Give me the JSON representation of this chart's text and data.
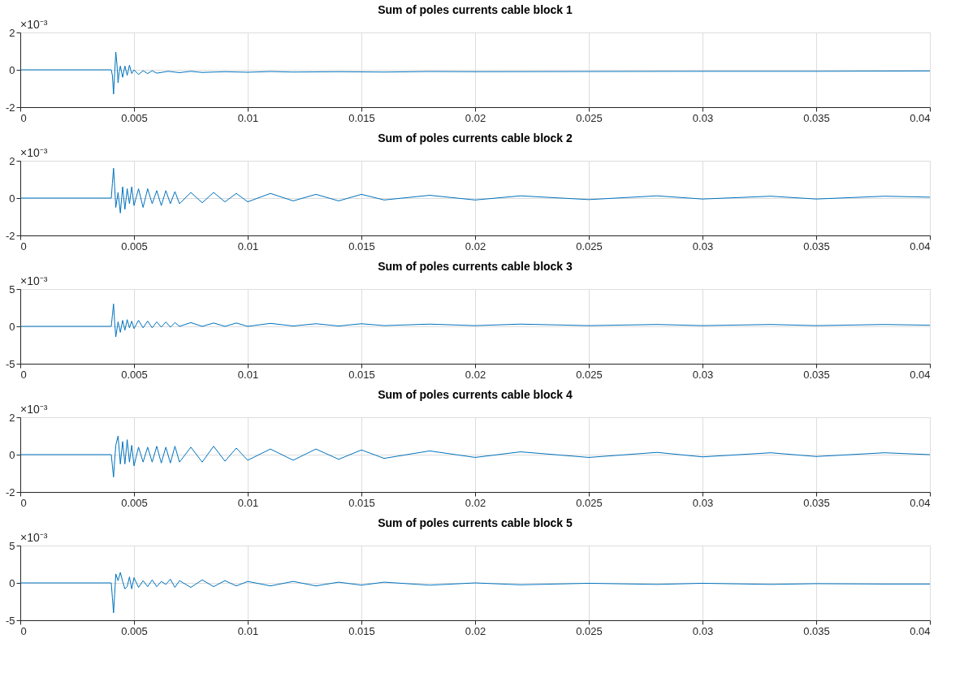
{
  "chart_data": [
    {
      "type": "line",
      "title": "Sum of poles currents  cable block 1",
      "annotations": [
        "×10⁻³"
      ],
      "grid": true,
      "xlim": [
        0,
        0.04
      ],
      "xticks": [
        0,
        0.005,
        0.01,
        0.015,
        0.02,
        0.025,
        0.03,
        0.035,
        0.04
      ],
      "ylim": [
        -2,
        2
      ],
      "yticks": [
        -2,
        0,
        2
      ],
      "x": [
        0,
        0.004,
        0.00405,
        0.0041,
        0.00415,
        0.0042,
        0.00425,
        0.0043,
        0.00435,
        0.0044,
        0.0045,
        0.0046,
        0.0047,
        0.0048,
        0.0049,
        0.005,
        0.0052,
        0.0054,
        0.0056,
        0.0058,
        0.006,
        0.0065,
        0.007,
        0.0075,
        0.008,
        0.009,
        0.01,
        0.011,
        0.012,
        0.014,
        0.016,
        0.018,
        0.02,
        0.025,
        0.03,
        0.035,
        0.04
      ],
      "series": [
        {
          "color": "#0072bd",
          "values": [
            0,
            0,
            -0.3,
            -1.3,
            -0.2,
            0.95,
            0.3,
            -0.7,
            -0.1,
            0.2,
            -0.4,
            0.2,
            -0.3,
            0.25,
            -0.2,
            0.0,
            -0.25,
            -0.05,
            -0.2,
            -0.05,
            -0.18,
            -0.08,
            -0.15,
            -0.08,
            -0.14,
            -0.1,
            -0.13,
            -0.09,
            -0.12,
            -0.1,
            -0.12,
            -0.09,
            -0.1,
            -0.09,
            -0.08,
            -0.08,
            -0.06
          ]
        }
      ]
    },
    {
      "type": "line",
      "title": "Sum of poles currents  cable block 2",
      "annotations": [
        "×10⁻³"
      ],
      "grid": true,
      "xlim": [
        0,
        0.04
      ],
      "xticks": [
        0,
        0.005,
        0.01,
        0.015,
        0.02,
        0.025,
        0.03,
        0.035,
        0.04
      ],
      "ylim": [
        -2,
        2
      ],
      "yticks": [
        -2,
        0,
        2
      ],
      "x": [
        0,
        0.004,
        0.00405,
        0.0041,
        0.00415,
        0.0042,
        0.0043,
        0.0044,
        0.0045,
        0.0046,
        0.0047,
        0.0048,
        0.0049,
        0.005,
        0.0052,
        0.0054,
        0.0056,
        0.0058,
        0.006,
        0.0062,
        0.0064,
        0.0066,
        0.0068,
        0.007,
        0.0075,
        0.008,
        0.0085,
        0.009,
        0.0095,
        0.01,
        0.011,
        0.012,
        0.013,
        0.014,
        0.015,
        0.016,
        0.018,
        0.02,
        0.022,
        0.025,
        0.028,
        0.03,
        0.033,
        0.035,
        0.038,
        0.04
      ],
      "series": [
        {
          "color": "#0072bd",
          "values": [
            0,
            0,
            0.8,
            1.6,
            0.6,
            -0.5,
            0.3,
            -0.8,
            0.6,
            -0.6,
            0.5,
            -0.3,
            0.6,
            -0.4,
            0.5,
            -0.5,
            0.5,
            -0.3,
            0.4,
            -0.4,
            0.4,
            -0.3,
            0.35,
            -0.3,
            0.3,
            -0.25,
            0.3,
            -0.2,
            0.25,
            -0.2,
            0.25,
            -0.15,
            0.2,
            -0.15,
            0.2,
            -0.1,
            0.15,
            -0.1,
            0.12,
            -0.08,
            0.12,
            -0.05,
            0.1,
            -0.05,
            0.1,
            0.05
          ]
        }
      ]
    },
    {
      "type": "line",
      "title": "Sum of poles currents  cable block 3",
      "annotations": [
        "×10⁻³"
      ],
      "grid": true,
      "xlim": [
        0,
        0.04
      ],
      "xticks": [
        0,
        0.005,
        0.01,
        0.015,
        0.02,
        0.025,
        0.03,
        0.035,
        0.04
      ],
      "ylim": [
        -5,
        5
      ],
      "yticks": [
        -5,
        0,
        5
      ],
      "x": [
        0,
        0.004,
        0.00405,
        0.0041,
        0.00415,
        0.0042,
        0.0043,
        0.0044,
        0.0045,
        0.0046,
        0.0047,
        0.0048,
        0.0049,
        0.005,
        0.0052,
        0.0054,
        0.0056,
        0.0058,
        0.006,
        0.0062,
        0.0064,
        0.0066,
        0.0068,
        0.007,
        0.0075,
        0.008,
        0.0085,
        0.009,
        0.0095,
        0.01,
        0.011,
        0.012,
        0.013,
        0.014,
        0.015,
        0.016,
        0.018,
        0.02,
        0.022,
        0.025,
        0.028,
        0.03,
        0.033,
        0.035,
        0.038,
        0.04
      ],
      "series": [
        {
          "color": "#0072bd",
          "values": [
            0,
            0,
            1.5,
            3.0,
            0.5,
            -1.4,
            0.6,
            -0.8,
            0.8,
            -0.5,
            0.9,
            -0.2,
            0.7,
            -0.3,
            0.8,
            -0.2,
            0.7,
            -0.2,
            0.6,
            -0.1,
            0.6,
            -0.1,
            0.5,
            0,
            0.5,
            0,
            0.45,
            0,
            0.45,
            0,
            0.4,
            0.05,
            0.35,
            0.05,
            0.35,
            0.1,
            0.3,
            0.1,
            0.3,
            0.1,
            0.25,
            0.1,
            0.25,
            0.1,
            0.25,
            0.15
          ]
        }
      ]
    },
    {
      "type": "line",
      "title": "Sum of poles currents  cable block 4",
      "annotations": [
        "×10⁻³"
      ],
      "grid": true,
      "xlim": [
        0,
        0.04
      ],
      "xticks": [
        0,
        0.005,
        0.01,
        0.015,
        0.02,
        0.025,
        0.03,
        0.035,
        0.04
      ],
      "ylim": [
        -2,
        2
      ],
      "yticks": [
        -2,
        0,
        2
      ],
      "x": [
        0,
        0.004,
        0.00405,
        0.0041,
        0.00415,
        0.0042,
        0.0043,
        0.0044,
        0.0045,
        0.0046,
        0.0047,
        0.0048,
        0.0049,
        0.005,
        0.0052,
        0.0054,
        0.0056,
        0.0058,
        0.006,
        0.0062,
        0.0064,
        0.0066,
        0.0068,
        0.007,
        0.0075,
        0.008,
        0.0085,
        0.009,
        0.0095,
        0.01,
        0.011,
        0.012,
        0.013,
        0.014,
        0.015,
        0.016,
        0.018,
        0.02,
        0.022,
        0.025,
        0.028,
        0.03,
        0.033,
        0.035,
        0.038,
        0.04
      ],
      "series": [
        {
          "color": "#0072bd",
          "values": [
            0,
            0,
            -0.6,
            -1.2,
            -0.3,
            0.5,
            1.0,
            -0.5,
            0.7,
            -0.5,
            0.8,
            -0.4,
            0.5,
            -0.6,
            0.4,
            -0.4,
            0.4,
            -0.4,
            0.45,
            -0.45,
            0.4,
            -0.45,
            0.45,
            -0.4,
            0.4,
            -0.4,
            0.45,
            -0.35,
            0.35,
            -0.3,
            0.3,
            -0.3,
            0.3,
            -0.25,
            0.25,
            -0.2,
            0.2,
            -0.15,
            0.15,
            -0.15,
            0.12,
            -0.12,
            0.1,
            -0.1,
            0.1,
            0.0
          ]
        }
      ]
    },
    {
      "type": "line",
      "title": "Sum of poles currents  cable block 5",
      "annotations": [
        "×10⁻³"
      ],
      "grid": true,
      "xlim": [
        0,
        0.04
      ],
      "xticks": [
        0,
        0.005,
        0.01,
        0.015,
        0.02,
        0.025,
        0.03,
        0.035,
        0.04
      ],
      "ylim": [
        -5,
        5
      ],
      "yticks": [
        -5,
        0,
        5
      ],
      "x": [
        0,
        0.004,
        0.00405,
        0.0041,
        0.00415,
        0.0042,
        0.0043,
        0.0044,
        0.0045,
        0.0046,
        0.0047,
        0.0048,
        0.0049,
        0.005,
        0.0052,
        0.0054,
        0.0056,
        0.0058,
        0.006,
        0.0062,
        0.0064,
        0.0066,
        0.0068,
        0.007,
        0.0075,
        0.008,
        0.0085,
        0.009,
        0.0095,
        0.01,
        0.011,
        0.012,
        0.013,
        0.014,
        0.015,
        0.016,
        0.018,
        0.02,
        0.022,
        0.025,
        0.028,
        0.03,
        0.033,
        0.035,
        0.038,
        0.04
      ],
      "series": [
        {
          "color": "#0072bd",
          "values": [
            0,
            0,
            -2.0,
            -4.0,
            -1.5,
            1.2,
            0.3,
            1.4,
            0.2,
            -0.8,
            -0.5,
            0.8,
            -0.8,
            0.7,
            -0.6,
            0.3,
            -0.5,
            0.4,
            -0.5,
            0.2,
            -0.2,
            0.5,
            -0.6,
            0.3,
            -0.6,
            0.4,
            -0.5,
            0.3,
            -0.4,
            0.2,
            -0.4,
            0.2,
            -0.4,
            0.1,
            -0.3,
            0.1,
            -0.3,
            0.0,
            -0.25,
            -0.05,
            -0.2,
            -0.05,
            -0.2,
            -0.1,
            -0.15,
            -0.15
          ]
        }
      ]
    }
  ]
}
